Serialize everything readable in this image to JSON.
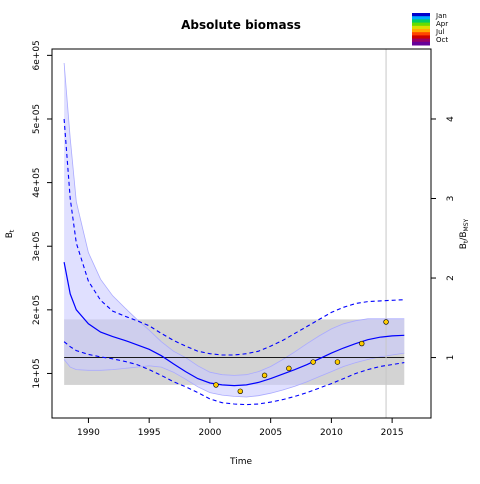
{
  "chart_data": {
    "type": "line",
    "title": "Absolute biomass",
    "xlabel": "Time",
    "ylabel": "B",
    "ylabel_sub": "t",
    "y2label": {
      "main": "B",
      "sub1": "t",
      "sep": "/B",
      "sub2": "MSY"
    },
    "xlim": [
      1987,
      2018.2
    ],
    "ylim": [
      30000,
      610000
    ],
    "y2ratio_unit": 125000,
    "x_ticks": [
      1990,
      1995,
      2000,
      2005,
      2010,
      2015
    ],
    "y_ticks": [
      100000,
      200000,
      300000,
      400000,
      500000,
      600000
    ],
    "y_tick_labels": [
      "1e+05",
      "2e+05",
      "3e+05",
      "4e+05",
      "5e+05",
      "6e+05"
    ],
    "y2_ticks": [
      1,
      2,
      3,
      4
    ],
    "bmsy": 125000,
    "bmsy_band": [
      82000,
      185000
    ],
    "band_x": [
      1988,
      2016
    ],
    "vline_x": 2014.5,
    "legend": {
      "placement": "top-right",
      "labels": [
        "Jan",
        "Apr",
        "Jul",
        "Oct"
      ],
      "colors": [
        "#0000cc",
        "#00aaff",
        "#00cc66",
        "#66dd00",
        "#dddd00",
        "#ffaa00",
        "#ff4400",
        "#cc0000",
        "#990066",
        "#660099"
      ]
    },
    "colors": {
      "estimate": "#0000ff",
      "ci_fill": "#ccccff",
      "ci_edge": "#aaaaff",
      "band": "#d3d3d3",
      "points": "#ffcc00",
      "vline": "#c8c8c8"
    },
    "series": [
      {
        "role": "estimate",
        "x": [
          1988,
          1988.5,
          1989,
          1990,
          1991,
          1992,
          1993,
          1994,
          1995,
          1996,
          1997,
          1998,
          1999,
          2000,
          2001,
          2002,
          2003,
          2004,
          2005,
          2006,
          2007,
          2008,
          2009,
          2010,
          2011,
          2012,
          2013,
          2014,
          2015,
          2016
        ],
        "y": [
          275000,
          225000,
          200000,
          178000,
          165000,
          158000,
          152000,
          145000,
          138000,
          128000,
          115000,
          103000,
          92000,
          85000,
          82000,
          81000,
          82000,
          86000,
          92000,
          99000,
          106000,
          114000,
          123000,
          132000,
          140000,
          147000,
          153000,
          157000,
          159000,
          160000
        ]
      },
      {
        "role": "ci_upper",
        "x": [
          1988,
          1988.5,
          1989,
          1990,
          1991,
          1992,
          1993,
          1994,
          1995,
          1996,
          1997,
          1998,
          1999,
          2000,
          2001,
          2002,
          2003,
          2004,
          2005,
          2006,
          2007,
          2008,
          2009,
          2010,
          2011,
          2012,
          2013,
          2014,
          2015,
          2016
        ],
        "y": [
          588000,
          470000,
          370000,
          290000,
          248000,
          222000,
          203000,
          185000,
          168000,
          150000,
          135000,
          125000,
          112000,
          102000,
          98000,
          97000,
          98000,
          103000,
          111000,
          122000,
          134000,
          147000,
          159000,
          170000,
          178000,
          183000,
          186000,
          186000,
          186000,
          186000
        ]
      },
      {
        "role": "ci_lower",
        "x": [
          1988,
          1988.5,
          1989,
          1990,
          1991,
          1992,
          1993,
          1994,
          1995,
          1996,
          1997,
          1998,
          1999,
          2000,
          2001,
          2002,
          2003,
          2004,
          2005,
          2006,
          2007,
          2008,
          2009,
          2010,
          2011,
          2012,
          2013,
          2014,
          2015,
          2016
        ],
        "y": [
          122000,
          110000,
          106000,
          105000,
          105000,
          106000,
          108000,
          110000,
          112000,
          110000,
          102000,
          91000,
          79000,
          70000,
          66000,
          64000,
          63000,
          65000,
          69000,
          74000,
          80000,
          87000,
          95000,
          103000,
          111000,
          117000,
          122000,
          126000,
          129000,
          132000
        ]
      },
      {
        "role": "prediction_upper",
        "x": [
          1988,
          1988.5,
          1989,
          1990,
          1991,
          1992,
          1993,
          1994,
          1995,
          1996,
          1997,
          1998,
          1999,
          2000,
          2001,
          2002,
          2003,
          2004,
          2005,
          2006,
          2007,
          2008,
          2009,
          2010,
          2011,
          2012,
          2013,
          2014,
          2015,
          2016
        ],
        "y": [
          500000,
          375000,
          305000,
          245000,
          215000,
          198000,
          190000,
          183000,
          175000,
          163000,
          152000,
          143000,
          135000,
          131000,
          129000,
          129000,
          131000,
          135000,
          143000,
          152000,
          163000,
          174000,
          185000,
          196000,
          204000,
          210000,
          213000,
          214000,
          215000,
          216000
        ]
      },
      {
        "role": "prediction_lower",
        "x": [
          1988,
          1988.5,
          1989,
          1990,
          1991,
          1992,
          1993,
          1994,
          1995,
          1996,
          1997,
          1998,
          1999,
          2000,
          2001,
          2002,
          2003,
          2004,
          2005,
          2006,
          2007,
          2008,
          2009,
          2010,
          2011,
          2012,
          2013,
          2014,
          2015,
          2016
        ],
        "y": [
          150000,
          142000,
          136000,
          130000,
          126000,
          123000,
          119000,
          114000,
          106000,
          97000,
          87000,
          79000,
          70000,
          60000,
          54000,
          52000,
          51000,
          52000,
          55000,
          59000,
          64000,
          70000,
          77000,
          84000,
          92000,
          100000,
          106000,
          111000,
          114000,
          117000
        ]
      },
      {
        "role": "observations",
        "x": [
          2000.5,
          2002.5,
          2004.5,
          2006.5,
          2008.5,
          2010.5,
          2012.5,
          2014.5
        ],
        "y": [
          82000,
          72000,
          97000,
          108000,
          118000,
          118000,
          147000,
          181000
        ]
      }
    ]
  }
}
